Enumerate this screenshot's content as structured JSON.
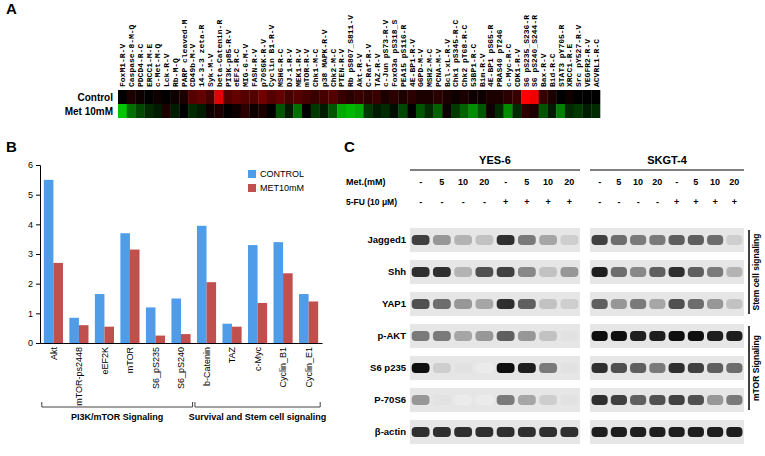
{
  "chart_data": [
    {
      "type": "heatmap",
      "panel": "A",
      "x": [
        "FoxM1-R-V",
        "Caspase-8-M-Q",
        "PDCD4-R-C",
        "ERCC1-M-E",
        "c-Met-M-Q",
        "Lck-R-V",
        "Rb-M-Q",
        "PARP cleaved-M",
        "CD49b-M-V",
        "14-3-3 zeta-R",
        "Syk-M-V",
        "beta-Catenin-R",
        "PI3K-p85-R-V",
        "eEF2-R-C",
        "MIG-6-M-V",
        "FASN-R-V",
        "p70S6K-R-V",
        "Cyclin B1-R-V",
        "MSH6-R-C",
        "DJ-1-R-V",
        "MEK1-R-V",
        "mTOR-R-V",
        "Chk1-M-C",
        "p38 MAPK-R-V",
        "Chk2-M-C",
        "PTEN-R-V",
        "Rb pS807_S811-V",
        "Akt-R-V",
        "C-Raf-R-V",
        "TAZ-R-V",
        "c-Jun pS73-R-V",
        "FoxO3a pS318_S",
        "PEA15 pS116-R",
        "4E-BP1-R-V",
        "G6PD-M-V",
        "MSH2-M-C",
        "PCNA-M-V",
        "Bcl-xL-R-V",
        "Chk1 pS345-R-C",
        "Chk2 pT68-R-C",
        "53BP1-R-C",
        "Bim-R-V",
        "4E-BP1 pS65-R",
        "PRAS40 pT246",
        "c-Myc-R-C",
        "CDK1-R-V",
        "S6 pS235_S236-R",
        "S6 pS240_S244-R",
        "Bax-R-V",
        "Bid-R-C",
        "STAT3 pY705-R",
        "XRCC1-R-E",
        "Src pY527-R-V",
        "VEGFR2-R-V",
        "ACVRL1-R-C"
      ],
      "y": [
        "Control",
        "Met 10mM"
      ],
      "cells": [
        [
          0,
          0.1,
          0.05,
          0,
          0.05,
          0,
          0.05,
          0.1,
          0.3,
          0.35,
          0.25,
          0.8,
          0.3,
          0.35,
          0.3,
          0.3,
          0.4,
          0.3,
          0.35,
          0.25,
          0.3,
          0.25,
          0.2,
          0.25,
          0.3,
          0.2,
          0.15,
          0.2,
          0.15,
          0.2,
          0.1,
          0.15,
          0.1,
          0.15,
          0.1,
          0.1,
          0.15,
          0.1,
          0.05,
          0.1,
          0.05,
          0.05,
          0.1,
          0.1,
          0.15,
          0.2,
          0.9,
          0.85,
          0.2,
          0.1,
          0,
          0.05,
          0,
          0,
          0
        ],
        [
          -0.7,
          -0.4,
          -0.25,
          -0.15,
          -0.1,
          0.1,
          -0.1,
          0,
          -0.15,
          -0.1,
          0.05,
          0.1,
          0,
          0.05,
          0.15,
          0.05,
          0.1,
          0,
          -0.3,
          -0.1,
          -0.4,
          0,
          -0.2,
          -0.1,
          -0.3,
          -0.6,
          -0.65,
          -0.6,
          -0.2,
          -0.1,
          -0.15,
          -0.05,
          -0.25,
          0,
          -0.3,
          -0.15,
          -0.35,
          0.05,
          -0.2,
          -0.35,
          -0.5,
          -0.3,
          0.05,
          -0.15,
          -0.5,
          -0.15,
          0.15,
          0.1,
          -0.3,
          -0.1,
          -0.45,
          -0.15,
          -0.2,
          -0.1,
          -0.15
        ]
      ]
    },
    {
      "type": "bar",
      "panel": "B",
      "groups": [
        {
          "label": "PI3K/mTOR Signaling",
          "categories": [
            "Akt",
            "mTOR-ps2448",
            "eEF2K",
            "mTOR",
            "S6_pS235",
            "S6_pS240"
          ]
        },
        {
          "label": "Survival and Stem cell signaling",
          "categories": [
            "b-Catenin",
            "TAZ",
            "c-Myc",
            "Cyclin_B1",
            "Cyclin_E1"
          ]
        }
      ],
      "series": [
        {
          "name": "CONTROL",
          "color": "#4f9de8",
          "values": [
            5.5,
            0.85,
            1.65,
            3.7,
            1.2,
            1.5,
            3.95,
            0.65,
            3.3,
            3.4,
            1.65
          ]
        },
        {
          "name": "MET10mM",
          "color": "#c0504d",
          "values": [
            2.7,
            0.6,
            0.55,
            3.15,
            0.25,
            0.3,
            2.05,
            0.55,
            1.35,
            2.35,
            1.4
          ]
        }
      ],
      "ylim": [
        0,
        6
      ],
      "yticks": [
        0,
        1,
        2,
        3,
        4,
        5,
        6
      ],
      "legend": "top-right"
    }
  ],
  "blot": {
    "panel": "C",
    "dose_label": "Met.(mM)",
    "fu_label": "5-FU (10 μM)",
    "doses": [
      "-",
      "5",
      "10",
      "20",
      "-",
      "5",
      "10",
      "20"
    ],
    "fu": [
      "-",
      "-",
      "-",
      "-",
      "+",
      "+",
      "+",
      "+"
    ],
    "groups": [
      {
        "label": "Stem cell signaling",
        "proteins": [
          "Jagged1",
          "Shh",
          "YAP1"
        ]
      },
      {
        "label": "mTOR Signaling",
        "proteins": [
          "p-AKT",
          "S6 p235",
          "P-70S6"
        ]
      }
    ],
    "loading": "β-actin",
    "blots": [
      {
        "name": "YES-6",
        "values": [
          [
            0.8,
            0.5,
            0.4,
            0.35,
            0.85,
            0.6,
            0.45,
            0.3
          ],
          [
            0.85,
            0.85,
            0.4,
            0.75,
            0.8,
            0.55,
            0.35,
            0.5
          ],
          [
            0.75,
            0.65,
            0.5,
            0.45,
            0.85,
            0.7,
            0.35,
            0.3
          ],
          [
            0.6,
            0.6,
            0.45,
            0.5,
            0.7,
            0.5,
            0.35,
            0.2
          ],
          [
            0.95,
            0.3,
            0.2,
            0.15,
            0.95,
            0.9,
            0.6,
            0.2
          ],
          [
            0.5,
            0.2,
            0.15,
            0.15,
            0.6,
            0.45,
            0.3,
            0.2
          ],
          [
            0.85,
            0.85,
            0.85,
            0.85,
            0.85,
            0.85,
            0.85,
            0.85
          ]
        ]
      },
      {
        "name": "SKGT-4",
        "values": [
          [
            0.8,
            0.65,
            0.6,
            0.6,
            0.7,
            0.7,
            0.65,
            0.3
          ],
          [
            0.9,
            0.65,
            0.55,
            0.7,
            0.85,
            0.7,
            0.6,
            0.4
          ],
          [
            0.7,
            0.5,
            0.6,
            0.45,
            0.75,
            0.65,
            0.5,
            0.35
          ],
          [
            0.95,
            0.95,
            0.9,
            0.9,
            0.95,
            0.95,
            0.9,
            0.9
          ],
          [
            0.85,
            0.75,
            0.7,
            0.6,
            0.85,
            0.8,
            0.7,
            0.65
          ],
          [
            0.85,
            0.8,
            0.7,
            0.75,
            0.8,
            0.75,
            0.5,
            0.6
          ],
          [
            0.9,
            0.9,
            0.9,
            0.9,
            0.9,
            0.9,
            0.9,
            0.9
          ]
        ]
      }
    ]
  }
}
